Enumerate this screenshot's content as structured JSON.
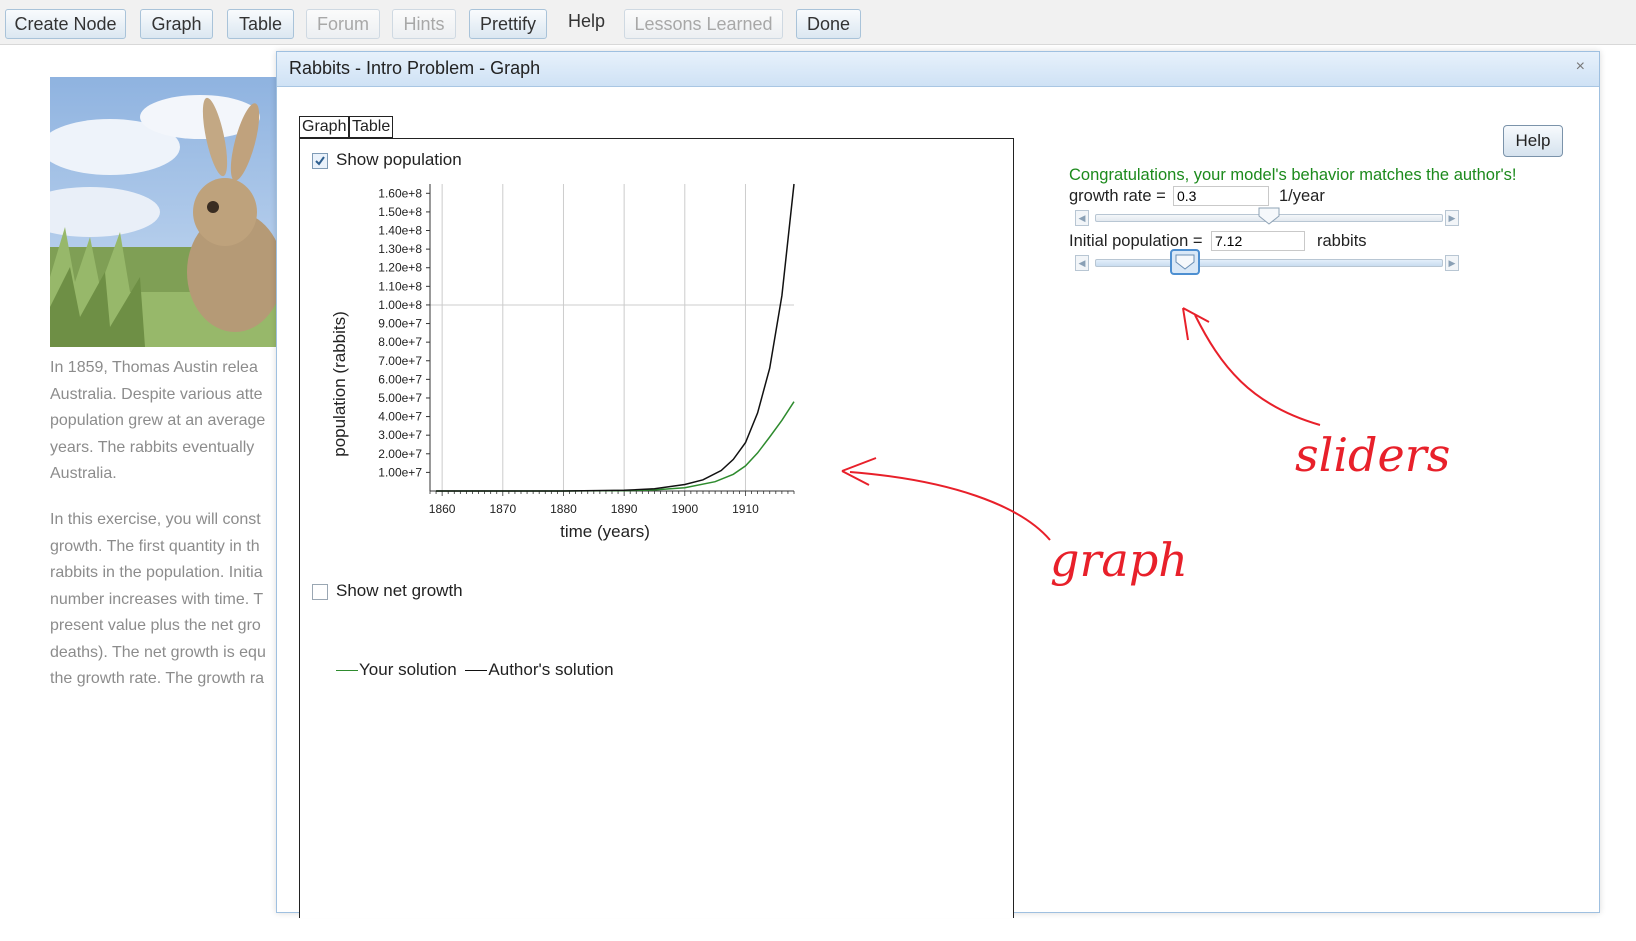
{
  "toolbar": {
    "create_node": "Create Node",
    "graph": "Graph",
    "table": "Table",
    "forum": "Forum",
    "hints": "Hints",
    "prettify": "Prettify",
    "help": "Help",
    "lessons_learned": "Lessons Learned",
    "done": "Done"
  },
  "background": {
    "lines_p1": [
      "In 1859, Thomas Austin relea",
      "Australia. Despite various atte",
      "population grew at an average",
      "years. The rabbits eventually",
      "Australia."
    ],
    "lines_p2": [
      "In this exercise, you will const",
      "growth. The first quantity in th",
      "rabbits in the population. Initia",
      "number increases with time. T",
      "present value plus the net gro",
      "deaths). The net growth is equ",
      "the growth rate. The growth ra"
    ]
  },
  "dialog": {
    "title": "Rabbits - Intro Problem - Graph",
    "close": "×",
    "tabs": {
      "graph": "Graph",
      "table": "Table"
    },
    "show_population": "Show population",
    "show_net_growth": "Show net growth",
    "help": "Help",
    "congrats": "Congratulations, your model's behavior matches the author's!",
    "growth_rate": {
      "label": "growth rate =",
      "value": "0.3",
      "unit": "1/year",
      "slider_fraction": 0.5
    },
    "initial_population": {
      "label": "Initial population =",
      "value": "7.12",
      "unit": "rabbits",
      "slider_fraction": 0.26
    }
  },
  "annotations": {
    "sliders": "sliders",
    "graph": "graph"
  },
  "chart_data": {
    "type": "line",
    "xlabel": "time (years)",
    "ylabel": "population (rabbits)",
    "xlim": [
      1858,
      1918
    ],
    "ylim": [
      0,
      165000000
    ],
    "x_ticks": [
      1860,
      1870,
      1880,
      1890,
      1900,
      1910
    ],
    "y_ticks": [
      10000000,
      20000000,
      30000000,
      40000000,
      50000000,
      60000000,
      70000000,
      80000000,
      90000000,
      100000000,
      110000000,
      120000000,
      130000000,
      140000000,
      150000000,
      160000000
    ],
    "y_tick_labels": [
      "1.00e+7",
      "2.00e+7",
      "3.00e+7",
      "4.00e+7",
      "5.00e+7",
      "6.00e+7",
      "7.00e+7",
      "8.00e+7",
      "9.00e+7",
      "1.00e+8",
      "1.10e+8",
      "1.20e+8",
      "1.30e+8",
      "1.40e+8",
      "1.50e+8",
      "1.60e+8"
    ],
    "reference_line_y": 100000000,
    "grid": "vertical",
    "series": [
      {
        "name": "Your solution",
        "color": "#2e8b2e",
        "x": [
          1859,
          1880,
          1890,
          1895,
          1900,
          1905,
          1908,
          1910,
          1912,
          1914,
          1916,
          1918
        ],
        "y": [
          0,
          0,
          200000,
          600000,
          1800000,
          5000000,
          9000000,
          13500000,
          20500000,
          29000000,
          38000000,
          48000000
        ]
      },
      {
        "name": "Author's solution",
        "color": "#111111",
        "x": [
          1859,
          1880,
          1890,
          1895,
          1900,
          1903,
          1906,
          1908,
          1910,
          1912,
          1914,
          1916,
          1918
        ],
        "y": [
          0,
          0,
          400000,
          1200000,
          3500000,
          6000000,
          11000000,
          17000000,
          26000000,
          42000000,
          66000000,
          105000000,
          165000000
        ]
      }
    ],
    "legend": "bottom-left"
  }
}
